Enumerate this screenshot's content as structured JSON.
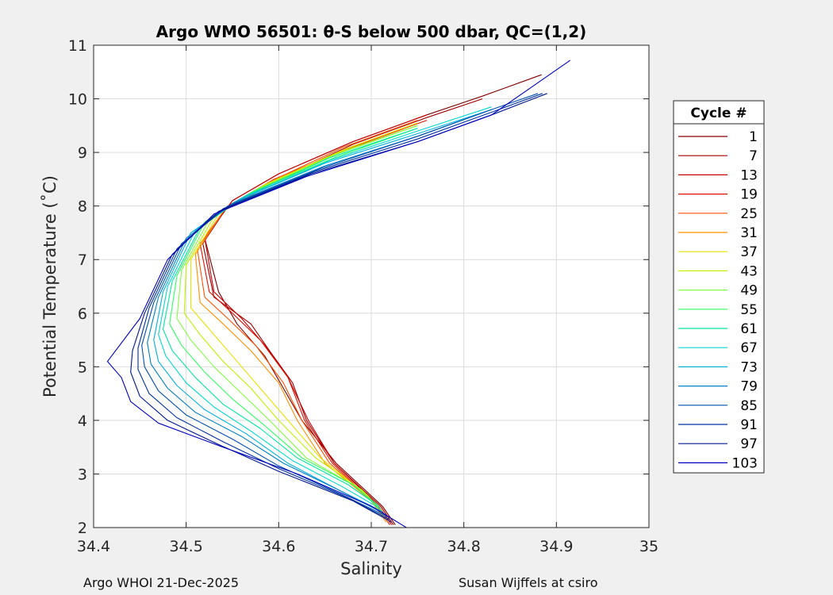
{
  "chart_data": {
    "type": "line",
    "title": "Argo WMO 56501: θ-S below 500 dbar,  QC=(1,2)",
    "xlabel": "Salinity",
    "ylabel": "Potential Temperature (˚C)",
    "xlim": [
      34.4,
      35.0
    ],
    "ylim": [
      2,
      11
    ],
    "xticks": [
      "34.4",
      "34.5",
      "34.6",
      "34.7",
      "34.8",
      "34.9",
      "35"
    ],
    "yticks": [
      "2",
      "3",
      "4",
      "5",
      "6",
      "7",
      "8",
      "9",
      "10",
      "11"
    ],
    "grid": true,
    "legend_title": "Cycle #",
    "legend_position": "right",
    "series": [
      {
        "name": "1",
        "color": "#800000",
        "x": [
          34.726,
          34.712,
          34.662,
          34.625,
          34.605,
          34.585,
          34.555,
          34.535,
          34.52,
          34.55,
          34.6,
          34.68,
          34.76,
          34.82,
          34.86,
          34.884
        ],
        "y": [
          2.05,
          2.4,
          3.2,
          4.0,
          4.6,
          5.2,
          5.8,
          6.4,
          7.4,
          8.1,
          8.6,
          9.2,
          9.7,
          10.05,
          10.3,
          10.45
        ]
      },
      {
        "name": "7",
        "color": "#a00000",
        "x": [
          34.724,
          34.71,
          34.66,
          34.63,
          34.615,
          34.59,
          34.57,
          34.53,
          34.518,
          34.545,
          34.6,
          34.68,
          34.76,
          34.82
        ],
        "y": [
          2.05,
          2.4,
          3.2,
          4.0,
          4.7,
          5.3,
          5.8,
          6.3,
          7.3,
          8.0,
          8.5,
          9.15,
          9.65,
          10.0
        ]
      },
      {
        "name": "13",
        "color": "#c80000",
        "x": [
          34.722,
          34.708,
          34.66,
          34.632,
          34.61,
          34.585,
          34.56,
          34.53,
          34.52,
          34.55,
          34.6,
          34.68,
          34.76
        ],
        "y": [
          2.05,
          2.4,
          3.2,
          4.0,
          4.8,
          5.4,
          5.9,
          6.4,
          7.4,
          8.1,
          8.6,
          9.2,
          9.7
        ]
      },
      {
        "name": "19",
        "color": "#e01000",
        "x": [
          34.72,
          34.706,
          34.658,
          34.628,
          34.61,
          34.58,
          34.55,
          34.525,
          34.515,
          34.545,
          34.595,
          34.68,
          34.76
        ],
        "y": [
          2.05,
          2.4,
          3.2,
          4.0,
          4.8,
          5.5,
          6.0,
          6.4,
          7.3,
          8.0,
          8.5,
          9.1,
          9.6
        ]
      },
      {
        "name": "25",
        "color": "#ff5000",
        "x": [
          34.718,
          34.704,
          34.655,
          34.625,
          34.605,
          34.575,
          34.545,
          34.52,
          34.512,
          34.542,
          34.59,
          34.67,
          34.75
        ],
        "y": [
          2.1,
          2.45,
          3.2,
          4.0,
          4.7,
          5.4,
          5.9,
          6.3,
          7.2,
          7.95,
          8.45,
          9.1,
          9.6
        ]
      },
      {
        "name": "31",
        "color": "#ff9000",
        "x": [
          34.716,
          34.7,
          34.65,
          34.62,
          34.6,
          34.57,
          34.54,
          34.515,
          34.51,
          34.54,
          34.59,
          34.67,
          34.75
        ],
        "y": [
          2.1,
          2.5,
          3.2,
          4.0,
          4.7,
          5.3,
          5.8,
          6.2,
          7.1,
          7.9,
          8.4,
          9.05,
          9.55
        ]
      },
      {
        "name": "37",
        "color": "#e8e000",
        "x": [
          34.714,
          34.696,
          34.645,
          34.61,
          34.58,
          34.55,
          34.525,
          34.505,
          34.505,
          34.535,
          34.585,
          34.67,
          34.75
        ],
        "y": [
          2.2,
          2.6,
          3.3,
          4.0,
          4.6,
          5.2,
          5.7,
          6.1,
          7.0,
          7.85,
          8.4,
          9.05,
          9.55
        ]
      },
      {
        "name": "43",
        "color": "#c0f000",
        "x": [
          34.712,
          34.69,
          34.64,
          34.6,
          34.57,
          34.54,
          34.515,
          34.498,
          34.5,
          34.53,
          34.58,
          34.665,
          34.75
        ],
        "y": [
          2.3,
          2.7,
          3.3,
          4.0,
          4.6,
          5.1,
          5.6,
          6.0,
          6.9,
          7.8,
          8.35,
          9.0,
          9.5
        ]
      },
      {
        "name": "49",
        "color": "#80ff40",
        "x": [
          34.71,
          34.685,
          34.63,
          34.59,
          34.56,
          34.53,
          34.505,
          34.49,
          34.495,
          34.525,
          34.575,
          34.66,
          34.75
        ],
        "y": [
          2.35,
          2.75,
          3.3,
          4.0,
          4.5,
          5.0,
          5.5,
          5.9,
          6.8,
          7.75,
          8.3,
          8.95,
          9.5
        ]
      },
      {
        "name": "55",
        "color": "#30ff60",
        "x": [
          34.708,
          34.68,
          34.625,
          34.585,
          34.55,
          34.52,
          34.495,
          34.482,
          34.49,
          34.52,
          34.57,
          34.66,
          34.75
        ],
        "y": [
          2.4,
          2.8,
          3.3,
          3.9,
          4.4,
          4.9,
          5.4,
          5.8,
          6.7,
          7.7,
          8.25,
          8.9,
          9.45
        ]
      },
      {
        "name": "61",
        "color": "#00e8a0",
        "x": [
          34.708,
          34.675,
          34.62,
          34.58,
          34.54,
          34.51,
          34.485,
          34.475,
          34.485,
          34.515,
          34.565,
          34.655,
          34.75
        ],
        "y": [
          2.4,
          2.8,
          3.3,
          3.85,
          4.3,
          4.8,
          5.3,
          5.7,
          6.6,
          7.6,
          8.2,
          8.9,
          9.45
        ]
      },
      {
        "name": "67",
        "color": "#00d8d0",
        "x": [
          34.71,
          34.67,
          34.615,
          34.57,
          34.53,
          34.5,
          34.478,
          34.47,
          34.48,
          34.51,
          34.56,
          34.655,
          34.75,
          34.83
        ],
        "y": [
          2.35,
          2.75,
          3.25,
          3.8,
          4.25,
          4.7,
          5.2,
          5.6,
          6.5,
          7.55,
          8.15,
          8.85,
          9.4,
          9.85
        ]
      },
      {
        "name": "73",
        "color": "#00b0e0",
        "x": [
          34.712,
          34.665,
          34.61,
          34.565,
          34.52,
          34.49,
          34.47,
          34.465,
          34.475,
          34.505,
          34.555,
          34.65,
          34.75,
          34.83
        ],
        "y": [
          2.3,
          2.7,
          3.2,
          3.75,
          4.2,
          4.65,
          5.1,
          5.5,
          6.4,
          7.5,
          8.1,
          8.8,
          9.35,
          9.8
        ]
      },
      {
        "name": "79",
        "color": "#0080c8",
        "x": [
          34.715,
          34.665,
          34.605,
          34.56,
          34.51,
          34.48,
          34.462,
          34.458,
          34.47,
          34.5,
          34.55,
          34.65,
          34.75,
          34.83
        ],
        "y": [
          2.25,
          2.7,
          3.2,
          3.7,
          4.15,
          4.6,
          5.05,
          5.45,
          6.3,
          7.4,
          8.05,
          8.75,
          9.3,
          9.8
        ]
      },
      {
        "name": "85",
        "color": "#0050b0",
        "x": [
          34.718,
          34.67,
          34.6,
          34.55,
          34.5,
          34.47,
          34.455,
          34.452,
          34.465,
          34.495,
          34.545,
          34.645,
          34.75,
          34.83,
          34.88
        ],
        "y": [
          2.2,
          2.6,
          3.15,
          3.65,
          4.1,
          4.55,
          5.0,
          5.4,
          6.2,
          7.3,
          8.0,
          8.7,
          9.3,
          9.8,
          10.1
        ]
      },
      {
        "name": "91",
        "color": "#0030a0",
        "x": [
          34.72,
          34.675,
          34.6,
          34.54,
          34.49,
          34.46,
          34.448,
          34.448,
          34.46,
          34.49,
          34.54,
          34.64,
          34.75,
          34.83,
          34.885
        ],
        "y": [
          2.15,
          2.55,
          3.1,
          3.6,
          4.05,
          4.5,
          4.95,
          5.35,
          6.1,
          7.2,
          7.95,
          8.65,
          9.25,
          9.75,
          10.1
        ]
      },
      {
        "name": "97",
        "color": "#001890",
        "x": [
          34.722,
          34.68,
          34.6,
          34.535,
          34.48,
          34.45,
          34.44,
          34.442,
          34.455,
          34.485,
          34.535,
          34.635,
          34.75,
          34.83,
          34.89
        ],
        "y": [
          2.1,
          2.5,
          3.05,
          3.55,
          4.0,
          4.45,
          4.9,
          5.3,
          6.0,
          7.1,
          7.9,
          8.6,
          9.2,
          9.7,
          10.1
        ]
      },
      {
        "name": "103",
        "color": "#0000c0",
        "x": [
          34.738,
          34.7,
          34.62,
          34.54,
          34.47,
          34.44,
          34.43,
          34.415,
          34.45,
          34.48,
          34.53,
          34.63,
          34.75,
          34.83,
          34.915
        ],
        "y": [
          2.0,
          2.4,
          3.0,
          3.5,
          3.95,
          4.35,
          4.8,
          5.1,
          5.9,
          7.0,
          7.85,
          8.55,
          9.2,
          9.7,
          10.72
        ]
      }
    ]
  },
  "footer": {
    "left": "Argo WHOI 21-Dec-2025",
    "right": "Susan Wijffels at csiro"
  }
}
